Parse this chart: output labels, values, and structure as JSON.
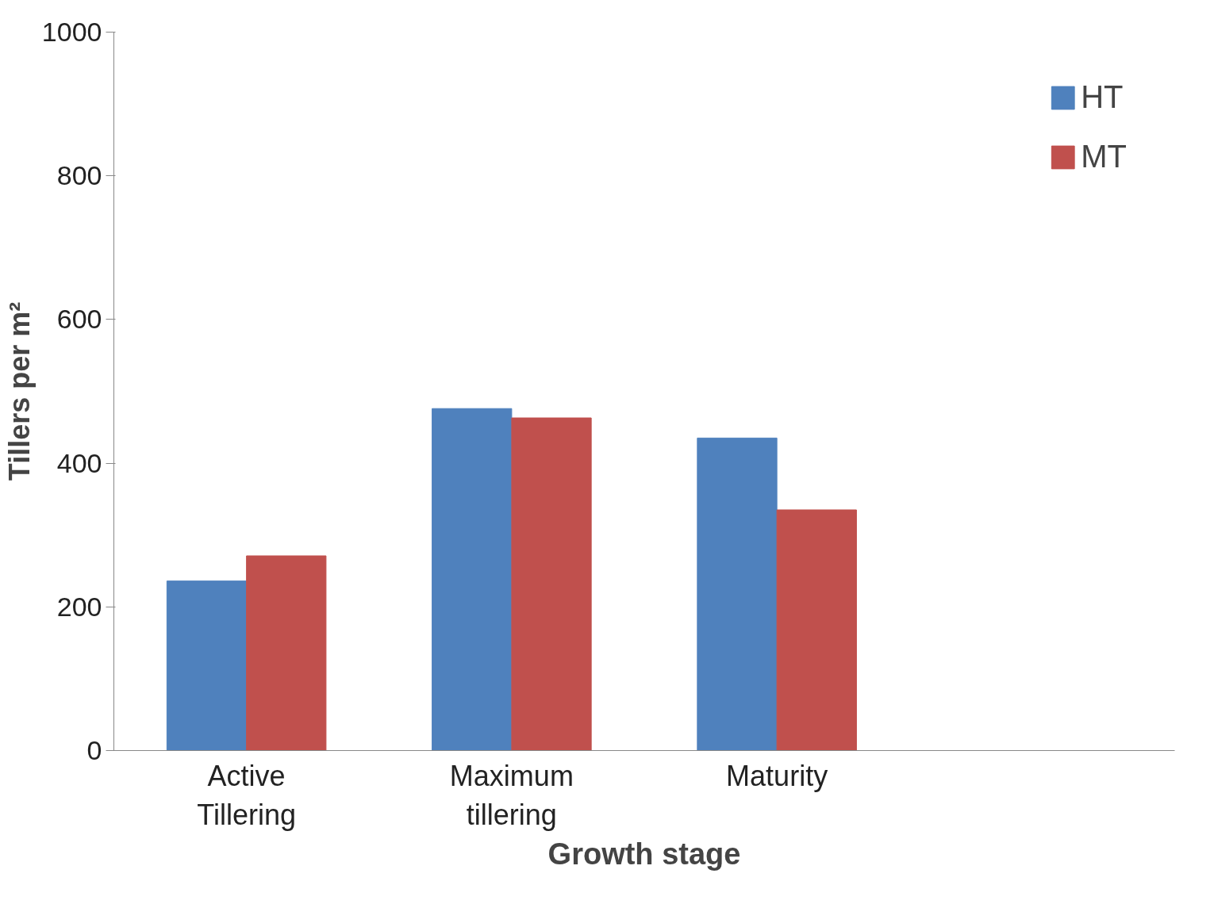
{
  "chart_data": {
    "type": "bar",
    "xlabel": "Growth stage",
    "ylabel": "Tillers per m²",
    "categories": [
      "Active Tillering",
      "Maximum tillering",
      "Maturity",
      null
    ],
    "series": [
      {
        "name": "HT",
        "color": "#4f81bd",
        "values": [
          236,
          476,
          435,
          null
        ]
      },
      {
        "name": "MT",
        "color": "#c0504d",
        "values": [
          271,
          463,
          335,
          null
        ]
      }
    ],
    "ylim": [
      0,
      1000
    ],
    "yticks": [
      0,
      200,
      400,
      600,
      800,
      1000
    ],
    "grid": false,
    "legend": "top right"
  }
}
